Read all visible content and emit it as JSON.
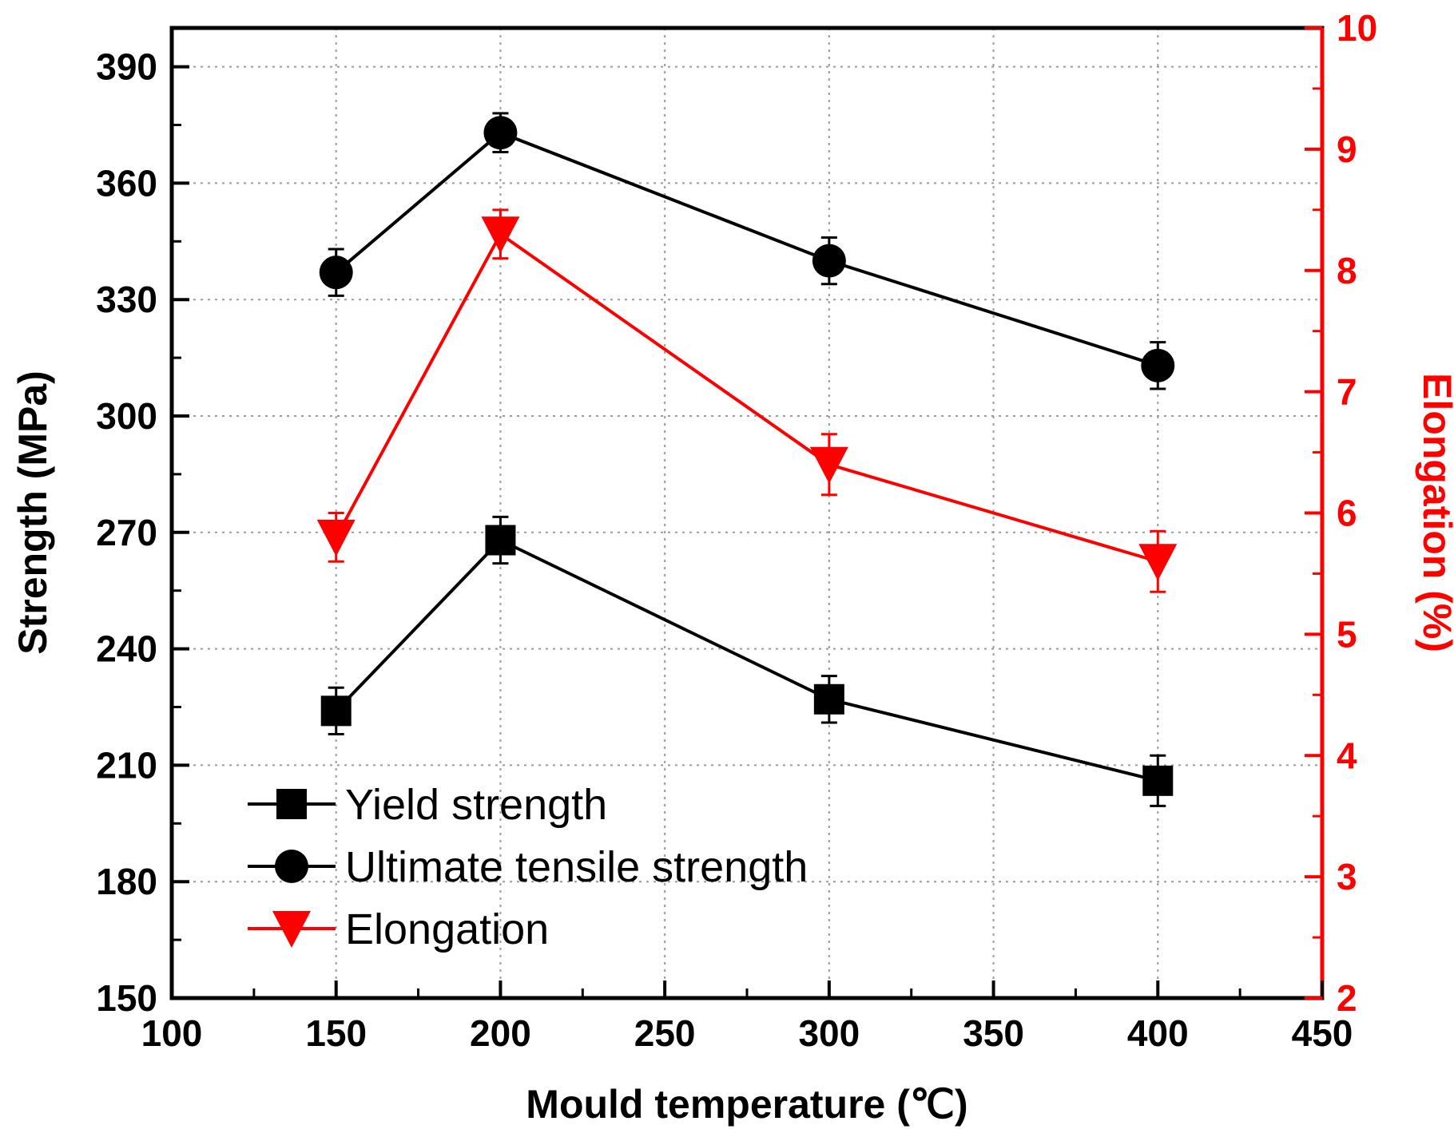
{
  "chart_data": {
    "type": "line",
    "x_values": [
      150,
      200,
      300,
      400
    ],
    "xlabel": "Mould temperature (℃)",
    "ylabel_left": "Strength (MPa)",
    "ylabel_right": "Elongation (%)",
    "xlim": [
      100,
      450
    ],
    "xticks": [
      100,
      150,
      200,
      250,
      300,
      350,
      400,
      450
    ],
    "ylim_left": [
      150,
      400
    ],
    "yticks_left": [
      150,
      180,
      210,
      240,
      270,
      300,
      330,
      360,
      390
    ],
    "ylim_right": [
      2,
      10
    ],
    "yticks_right": [
      2,
      3,
      4,
      5,
      6,
      7,
      8,
      9,
      10
    ],
    "grid": true,
    "legend_position": "bottom-left",
    "series": [
      {
        "name": "Yield strength",
        "axis": "left",
        "marker": "square",
        "color": "#000000",
        "values": [
          224,
          268,
          227,
          206
        ],
        "errors": [
          6,
          6,
          6,
          6.5
        ]
      },
      {
        "name": "Ultimate tensile strength",
        "axis": "left",
        "marker": "circle",
        "color": "#000000",
        "values": [
          337,
          373,
          340,
          313
        ],
        "errors": [
          6,
          5,
          6,
          6
        ]
      },
      {
        "name": "Elongation",
        "axis": "right",
        "marker": "triangle-down",
        "color": "#ff0000",
        "values": [
          5.8,
          8.3,
          6.4,
          5.6
        ],
        "errors": [
          0.2,
          0.2,
          0.25,
          0.25
        ]
      }
    ]
  }
}
